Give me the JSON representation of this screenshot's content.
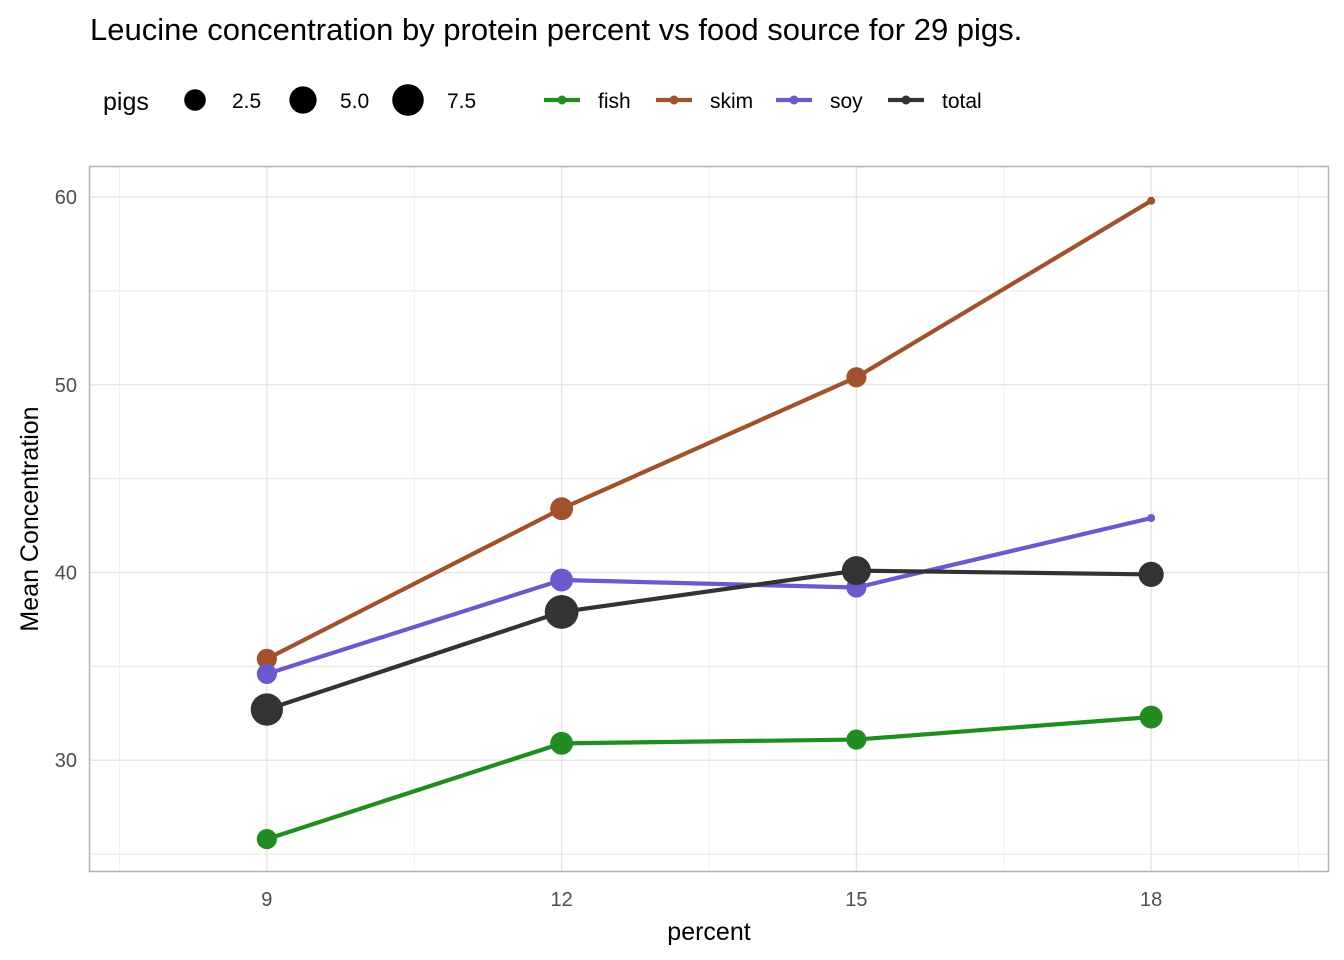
{
  "chart_data": {
    "type": "line",
    "title": "Leucine concentration by protein percent vs food source for 29 pigs.",
    "xlabel": "percent",
    "ylabel": "Mean Concentration",
    "x": [
      9,
      12,
      15,
      18
    ],
    "xlim": [
      7.2,
      19.8
    ],
    "ylim": [
      24.1,
      61.6
    ],
    "xticks": [
      9,
      12,
      15,
      18
    ],
    "yticks": [
      30,
      40,
      50,
      60
    ],
    "grid": true,
    "legend_position": "top",
    "size_legend": {
      "title": "pigs",
      "entries": [
        {
          "label": "2.5",
          "value": 2.5
        },
        {
          "label": "5.0",
          "value": 5.0
        },
        {
          "label": "7.5",
          "value": 7.5
        }
      ]
    },
    "series": [
      {
        "name": "fish",
        "color": "#228b22",
        "values": [
          25.8,
          30.9,
          31.1,
          32.3
        ],
        "pigs": [
          2,
          3,
          2,
          3
        ]
      },
      {
        "name": "skim",
        "color": "#a0522d",
        "values": [
          35.4,
          43.4,
          50.4,
          59.8
        ],
        "pigs": [
          2,
          3,
          2,
          0
        ]
      },
      {
        "name": "soy",
        "color": "#6a5acd",
        "values": [
          34.6,
          39.6,
          39.2,
          42.9
        ],
        "pigs": [
          2,
          3,
          2,
          0
        ]
      },
      {
        "name": "total",
        "color": "#333333",
        "values": [
          32.7,
          37.9,
          40.1,
          39.9
        ],
        "pigs": [
          8,
          9,
          6,
          4
        ]
      }
    ]
  }
}
